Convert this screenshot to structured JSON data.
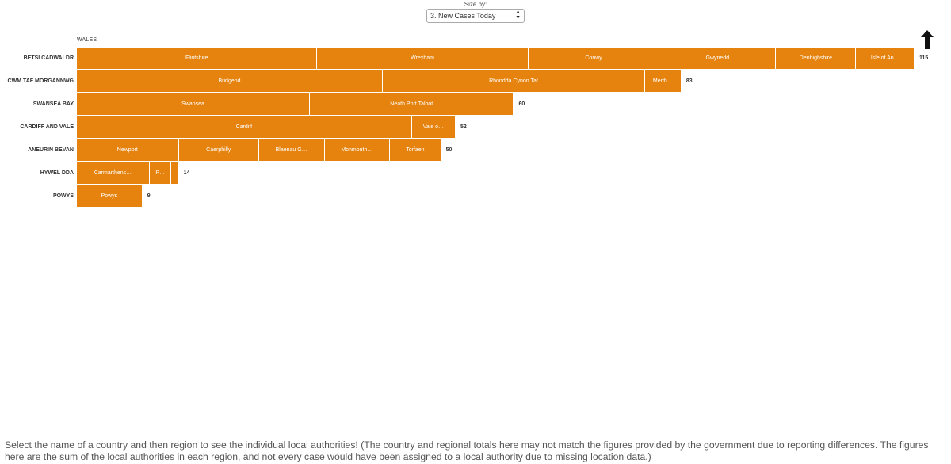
{
  "controls": {
    "size_label": "Size by:",
    "size_value": "3. New Cases Today",
    "up_icon": "up-arrow-icon"
  },
  "chart_data": {
    "type": "bar",
    "title": "WALES",
    "stacked": true,
    "orientation": "horizontal",
    "xlim": [
      0,
      115
    ],
    "colors": {
      "bar": "#e5830e",
      "label": "#ffffff"
    },
    "categories": [
      "BETSI CADWALDR",
      "CWM TAF MORGANNWG",
      "SWANSEA BAY",
      "CARDIFF AND VALE",
      "ANEURIN BEVAN",
      "HYWEL DDA",
      "POWYS"
    ],
    "totals": [
      115,
      83,
      60,
      52,
      50,
      14,
      9
    ],
    "rows": [
      {
        "name": "BETSI CADWALDR",
        "total": 115,
        "segments": [
          {
            "label": "Flintshire",
            "value": 33
          },
          {
            "label": "Wrexham",
            "value": 29
          },
          {
            "label": "Conwy",
            "value": 18
          },
          {
            "label": "Gwynedd",
            "value": 16
          },
          {
            "label": "Denbighshire",
            "value": 11
          },
          {
            "label": "Isle of An…",
            "value": 8
          }
        ]
      },
      {
        "name": "CWM TAF MORGANNWG",
        "total": 83,
        "segments": [
          {
            "label": "Bridgend",
            "value": 42
          },
          {
            "label": "Rhondda Cynon Taf",
            "value": 36
          },
          {
            "label": "Merth…",
            "value": 5
          }
        ]
      },
      {
        "name": "SWANSEA BAY",
        "total": 60,
        "segments": [
          {
            "label": "Swansea",
            "value": 32
          },
          {
            "label": "Neath Port Talbot",
            "value": 28
          }
        ]
      },
      {
        "name": "CARDIFF AND VALE",
        "total": 52,
        "segments": [
          {
            "label": "Cardiff",
            "value": 46
          },
          {
            "label": "Vale o…",
            "value": 6
          }
        ]
      },
      {
        "name": "ANEURIN BEVAN",
        "total": 50,
        "segments": [
          {
            "label": "Newport",
            "value": 14
          },
          {
            "label": "Caerphilly",
            "value": 11
          },
          {
            "label": "Blaenau G…",
            "value": 9
          },
          {
            "label": "Monmouth…",
            "value": 9
          },
          {
            "label": "Torfaen",
            "value": 7
          }
        ]
      },
      {
        "name": "HYWEL DDA",
        "total": 14,
        "segments": [
          {
            "label": "Carmarthens…",
            "value": 10
          },
          {
            "label": "P…",
            "value": 3
          },
          {
            "label": "",
            "value": 1
          }
        ]
      },
      {
        "name": "POWYS",
        "total": 9,
        "segments": [
          {
            "label": "Powys",
            "value": 9
          }
        ]
      }
    ]
  },
  "footer": {
    "text": "Select the name of a country and then region to see the individual local authorities! (The country and regional totals here may not match the figures provided by the government due to reporting differences. The figures here are the sum of the local authorities in each region, and not every case would have been assigned to a local authority due to missing location data.)"
  }
}
